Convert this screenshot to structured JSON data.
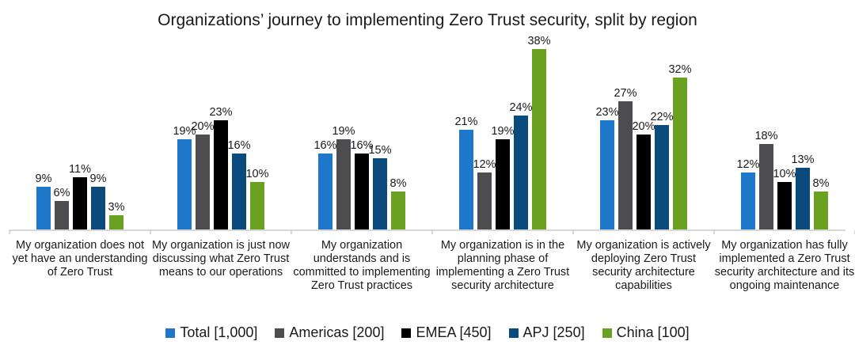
{
  "chart_data": {
    "type": "bar",
    "title": "Organizations’ journey to implementing Zero Trust security, split by region",
    "categories": [
      "My organization does not yet have an understanding of Zero Trust",
      "My organization is just now discussing what Zero Trust means to our operations",
      "My organization understands and is committed to implementing Zero Trust practices",
      "My organization is in the planning phase of implementing a Zero Trust security architecture",
      "My organization is actively deploying Zero Trust security architecture capabilities",
      "My organization has fully implemented a Zero Trust security architecture and its ongoing maintenance"
    ],
    "series": [
      {
        "name": "Total [1,000]",
        "color": "#1f77c9",
        "values": [
          9,
          19,
          16,
          21,
          23,
          12
        ]
      },
      {
        "name": "Americas [200]",
        "color": "#4d4d4f",
        "values": [
          6,
          20,
          19,
          12,
          27,
          18
        ]
      },
      {
        "name": "EMEA [450]",
        "color": "#000000",
        "values": [
          11,
          23,
          16,
          19,
          20,
          10
        ]
      },
      {
        "name": "APJ [250]",
        "color": "#0b4a7d",
        "values": [
          9,
          16,
          15,
          24,
          22,
          13
        ]
      },
      {
        "name": "China [100]",
        "color": "#6aa121",
        "values": [
          3,
          10,
          8,
          38,
          32,
          8
        ]
      }
    ],
    "value_suffix": "%",
    "ylim": [
      0,
      40
    ],
    "grid": false,
    "legend_position": "bottom"
  }
}
